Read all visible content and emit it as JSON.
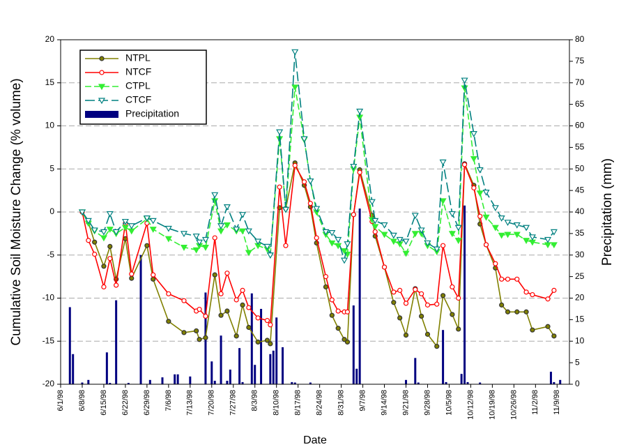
{
  "chart_data": {
    "type": "line",
    "xlabel": "Date",
    "ylabel": "Cumulative Soil Moisture Change (% volume)",
    "y2label": "Precipitation (mm)",
    "x": [
      "6/8/98",
      "6/10/98",
      "6/12/98",
      "6/15/98",
      "6/17/98",
      "6/19/98",
      "6/22/98",
      "6/24/98",
      "6/29/98",
      "7/1/98",
      "7/6/98",
      "7/11/98",
      "7/15/98",
      "7/16/98",
      "7/18/98",
      "7/21/98",
      "7/23/98",
      "7/25/98",
      "7/28/98",
      "7/30/98",
      "8/1/98",
      "8/4/98",
      "8/7/98",
      "8/8/98",
      "8/11/98",
      "8/13/98",
      "8/16/98",
      "8/19/98",
      "8/21/98",
      "8/23/98",
      "8/26/98",
      "8/28/98",
      "8/30/98",
      "9/1/98",
      "9/2/98",
      "9/4/98",
      "9/6/98",
      "9/10/98",
      "9/11/98",
      "9/14/98",
      "9/17/98",
      "9/19/98",
      "9/21/98",
      "9/24/98",
      "9/26/98",
      "9/28/98",
      "10/1/98",
      "10/3/98",
      "10/6/98",
      "10/8/98",
      "10/10/98",
      "10/13/98",
      "10/15/98",
      "10/17/98",
      "10/20/98",
      "10/22/98",
      "10/24/98",
      "10/27/98",
      "10/30/98",
      "11/1/98",
      "11/6/98",
      "11/8/98"
    ],
    "series": [
      {
        "name": "NTPL",
        "color": "#808000",
        "marker": "circle",
        "dash": "solid",
        "values": [
          0,
          -1.2,
          -3.5,
          -6.3,
          -4,
          -7.8,
          -3.1,
          -7.7,
          -3.9,
          -7.8,
          -12.7,
          -14,
          -13.8,
          -14.8,
          -14.6,
          -7.3,
          -12,
          -11.5,
          -14.4,
          -10.8,
          -13.4,
          -15.1,
          -14.9,
          -15.3,
          0.5,
          0.4,
          5.7,
          3.1,
          0.6,
          -3.6,
          -8.7,
          -12,
          -13.5,
          -14.8,
          -15.1,
          -0.3,
          4.9,
          -0.4,
          -2.8,
          -6.4,
          -10.5,
          -12.3,
          -14.3,
          -8.9,
          -12.1,
          -14.2,
          -15.6,
          -9.7,
          -11.9,
          -13.6,
          5.6,
          3.1,
          -1.4,
          -3.8,
          -6.5,
          -10.8,
          -11.6,
          -11.6,
          -11.6,
          -13.7,
          -13.3,
          -14.4
        ]
      },
      {
        "name": "NTCF",
        "color": "#ff0000",
        "marker": "open-circle",
        "dash": "solid",
        "values": [
          0,
          -3.3,
          -4.9,
          -8.7,
          -5.4,
          -8.5,
          -1.3,
          -7.2,
          -1.3,
          -7.3,
          -9.5,
          -10.3,
          -11.5,
          -11.3,
          -12.1,
          -3,
          -9.5,
          -7.1,
          -10.2,
          -9.1,
          -11.1,
          -12.3,
          -12.6,
          -13.1,
          2.9,
          -3.9,
          5.4,
          3.5,
          1,
          -3,
          -7.5,
          -10.2,
          -11.5,
          -11.6,
          -11.6,
          -0.3,
          4.6,
          -1.1,
          -2.3,
          -6.4,
          -9.3,
          -9.1,
          -10.6,
          -9,
          -9.5,
          -10.8,
          -10.7,
          -3.9,
          -8.7,
          -10,
          5.5,
          2.8,
          -0.5,
          -3.8,
          -6,
          -7.8,
          -7.8,
          -7.8,
          -9.3,
          -9.6,
          -10.1,
          -9.1
        ]
      },
      {
        "name": "CTPL",
        "color": "#33ee33",
        "marker": "triangle-down",
        "dash": "dashed",
        "values": [
          0,
          -1.3,
          -2.2,
          -3,
          -2,
          -2.5,
          -1.8,
          -2.2,
          -0.8,
          -2,
          -3.1,
          -4.1,
          -4.4,
          -3.9,
          -4.1,
          1.3,
          -2.2,
          -1.5,
          -2.2,
          -2.2,
          -4.7,
          -3.9,
          -4.3,
          -5,
          8.5,
          0.3,
          14.5,
          8.4,
          3.6,
          0,
          -2.6,
          -3.6,
          -3.9,
          -4.5,
          -4.9,
          5,
          11,
          -0.9,
          -1.7,
          -2.6,
          -3.4,
          -3.7,
          -4.8,
          -2.5,
          -2.5,
          -3.9,
          -4.6,
          1.3,
          -2.5,
          -3.3,
          14.4,
          6.2,
          2.2,
          -0.6,
          -1.8,
          -2.7,
          -2.6,
          -2.6,
          -3.3,
          -3.5,
          -3.8,
          -3.8
        ]
      },
      {
        "name": "CTCF",
        "color": "#008080",
        "marker": "open-triangle-down",
        "dash": "long-dashed",
        "values": [
          0,
          -1,
          -2.1,
          -2.3,
          -0.2,
          -2.3,
          -1.1,
          -1.6,
          -0.7,
          -1,
          -1.9,
          -2.5,
          -2.8,
          -3.5,
          -3.2,
          2,
          -1.6,
          0.6,
          -2,
          -0.3,
          -2.2,
          -3.4,
          -4,
          -5,
          9.3,
          0.3,
          18.6,
          8.5,
          3.6,
          0.4,
          -2.3,
          -2.4,
          -3.2,
          -5.6,
          -3.7,
          5.3,
          11.7,
          1.2,
          -1,
          -1.5,
          -2.7,
          -3.2,
          -3.4,
          -0.4,
          -2.1,
          -3.6,
          -4.3,
          5.8,
          -0.2,
          -1.8,
          15.3,
          9.1,
          4.9,
          2.3,
          0.5,
          -0.7,
          -1.2,
          -1.5,
          -1.8,
          -2.9,
          -3.2,
          -2.3
        ]
      },
      {
        "name": "Precipitation",
        "color": "#000080",
        "type": "bar",
        "axis": "y2",
        "x": [
          "6/4/98",
          "6/5/98",
          "6/8/98",
          "6/10/98",
          "6/16/98",
          "6/17/98",
          "6/19/98",
          "6/23/98",
          "6/27/98",
          "6/30/98",
          "7/4/98",
          "7/8/98",
          "7/9/98",
          "7/13/98",
          "7/18/98",
          "7/20/98",
          "7/21/98",
          "7/23/98",
          "7/25/98",
          "7/26/98",
          "7/29/98",
          "7/30/98",
          "8/2/98",
          "8/3/98",
          "8/5/98",
          "8/8/98",
          "8/9/98",
          "8/10/98",
          "8/12/98",
          "8/15/98",
          "8/16/98",
          "8/21/98",
          "9/4/98",
          "9/5/98",
          "9/6/98",
          "9/21/98",
          "9/24/98",
          "9/25/98",
          "10/3/98",
          "10/4/98",
          "10/9/98",
          "10/10/98",
          "10/11/98",
          "10/15/98",
          "11/7/98",
          "11/8/98",
          "11/10/98"
        ],
        "values": [
          17.9,
          7,
          0.4,
          1,
          7.4,
          0.3,
          19.5,
          0.3,
          30,
          1,
          1.6,
          2.3,
          2.3,
          1.8,
          21.3,
          5.3,
          0.8,
          11.3,
          0.8,
          3.4,
          8.4,
          0.5,
          21.1,
          4.5,
          17.5,
          7,
          7.8,
          15.5,
          8.6,
          0.5,
          0.4,
          0.4,
          18.3,
          3.6,
          40.8,
          1,
          6.1,
          0.4,
          12.6,
          0.5,
          2.4,
          41.5,
          0.5,
          0.4,
          2.9,
          0.5,
          1
        ]
      }
    ],
    "xlim": [
      "6/1/98",
      "11/13/98"
    ],
    "xticks": [
      "6/1/98",
      "6/8/98",
      "6/15/98",
      "6/22/98",
      "6/29/98",
      "7/6/98",
      "7/13/98",
      "7/20/98",
      "7/27/98",
      "8/3/98",
      "8/10/98",
      "8/17/98",
      "8/24/98",
      "8/31/98",
      "9/7/98",
      "9/14/98",
      "9/21/98",
      "9/28/98",
      "10/5/98",
      "10/12/98",
      "10/19/98",
      "10/26/98",
      "11/2/98",
      "11/9/98"
    ],
    "ylim": [
      -20,
      20
    ],
    "yticks": [
      -20,
      -15,
      -10,
      -5,
      0,
      5,
      10,
      15,
      20
    ],
    "y2lim": [
      0,
      80
    ],
    "y2ticks": [
      0,
      5,
      10,
      15,
      20,
      25,
      30,
      35,
      40,
      45,
      50,
      55,
      60,
      65,
      70,
      75,
      80
    ],
    "grid": true,
    "legend": "upper left"
  }
}
